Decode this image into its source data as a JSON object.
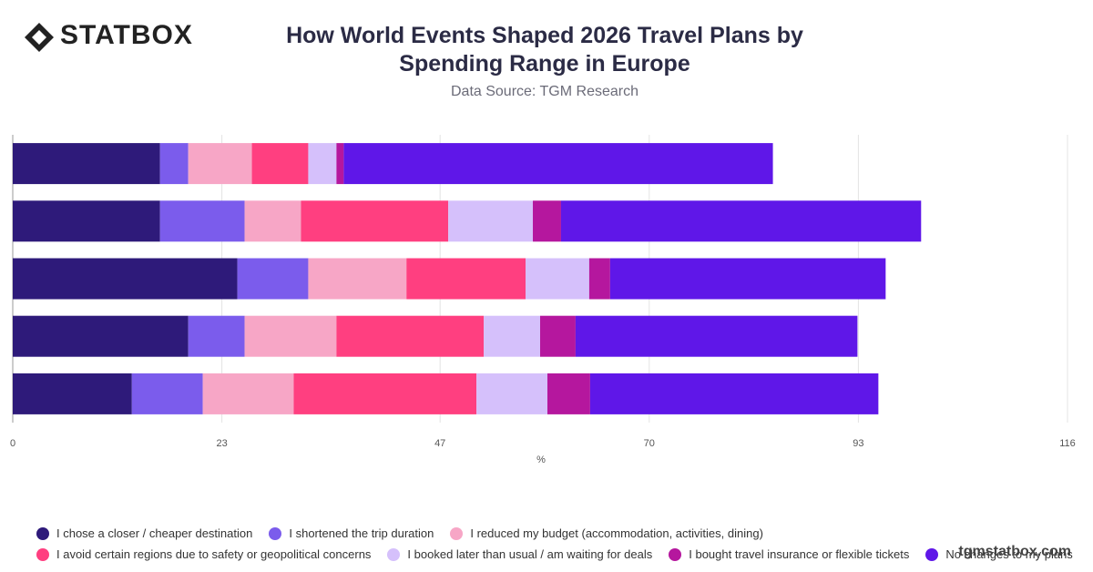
{
  "logo": "STATBOX",
  "watermark": "tgmstatbox.com",
  "chart_data": {
    "type": "stacked-bar-horizontal",
    "title": "How World Events Shaped 2026 Travel Plans by Spending Range in Europe",
    "subtitle": "Data Source: TGM Research",
    "x_label": "%",
    "categories": [
      null,
      null,
      null,
      null,
      null
    ],
    "series": [
      {
        "name": "I chose a closer / cheaper destination",
        "color": "#2e1a7a",
        "values": [
          16.2,
          16.2,
          24.7,
          19.3,
          13.1
        ]
      },
      {
        "name": "I shortened the trip duration",
        "color": "#7b5cec",
        "values": [
          3.1,
          9.3,
          7.8,
          6.2,
          7.8
        ]
      },
      {
        "name": "I reduced my budget (accommodation, activities, dining)",
        "color": "#f7a6c6",
        "values": [
          7.0,
          6.2,
          10.8,
          10.1,
          10.0
        ]
      },
      {
        "name": "I avoid certain regions due to safety or geopolitical concerns",
        "color": "#ff3f80",
        "values": [
          6.2,
          16.2,
          13.1,
          16.2,
          20.1
        ]
      },
      {
        "name": "I booked later than usual / am waiting for deals",
        "color": "#d5c0fb",
        "values": [
          3.1,
          9.3,
          7.0,
          6.2,
          7.8
        ]
      },
      {
        "name": "I bought travel insurance or flexible tickets",
        "color": "#b5179e",
        "values": [
          0.8,
          3.1,
          2.3,
          3.9,
          4.7
        ]
      },
      {
        "name": "No changes to my plans",
        "color": "#5f17e8",
        "values": [
          47.2,
          39.6,
          30.3,
          31.0,
          31.7
        ]
      }
    ],
    "xlim": [
      0,
      116
    ],
    "xticks": [
      0,
      23,
      47,
      70,
      93,
      116
    ],
    "grid": true
  }
}
